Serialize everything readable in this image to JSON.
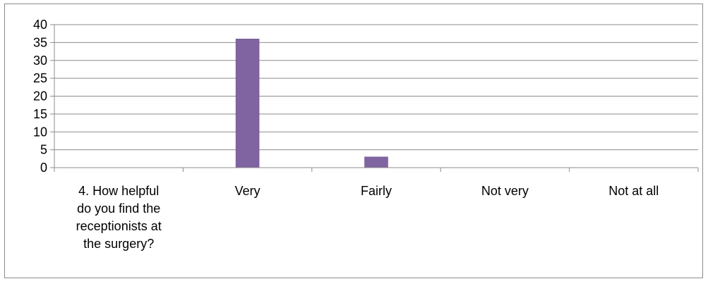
{
  "chart_data": {
    "type": "bar",
    "categories": [
      [
        "4. How helpful",
        "do you find the",
        "receptionists at",
        "the surgery?"
      ],
      [
        "Very"
      ],
      [
        "Fairly"
      ],
      [
        "Not very"
      ],
      [
        "Not at all"
      ]
    ],
    "values": [
      0,
      36,
      3,
      0,
      0
    ],
    "yticks": [
      "0",
      "5",
      "10",
      "15",
      "20",
      "25",
      "30",
      "35",
      "40"
    ],
    "ylim": [
      0,
      40
    ],
    "grid": true,
    "legend": "none",
    "title": "",
    "xlabel": "",
    "ylabel": "",
    "colors": {
      "bar": "#8064a2",
      "bar_edge": "#5e4a7d",
      "gridline": "#8c8c8c",
      "axis": "#8c8c8c",
      "frame_border": "#8c8c8c",
      "text": "#000000"
    }
  }
}
